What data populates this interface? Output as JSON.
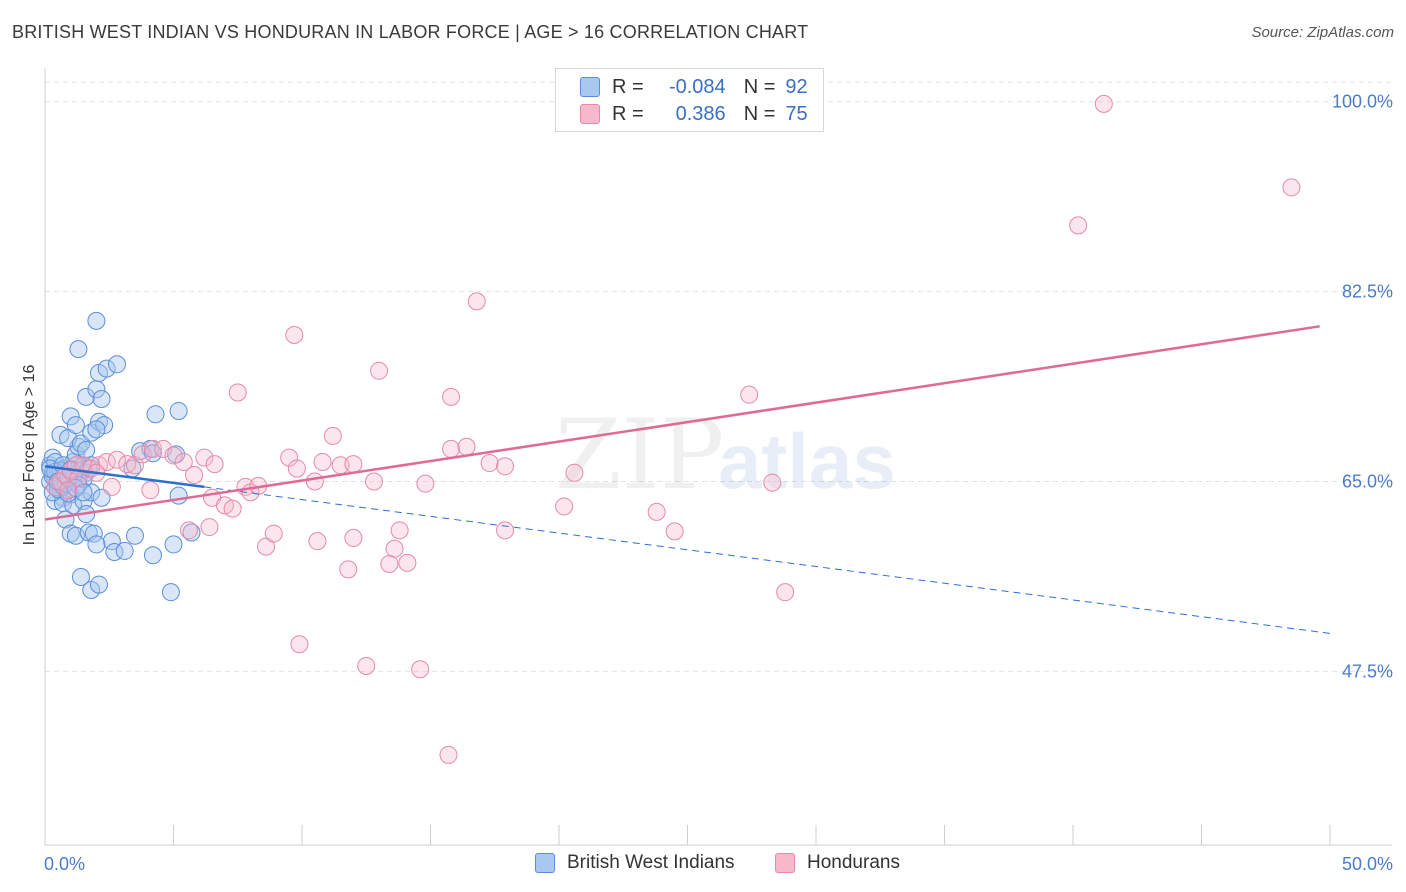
{
  "title": "BRITISH WEST INDIAN VS HONDURAN IN LABOR FORCE | AGE > 16 CORRELATION CHART",
  "source": "Source: ZipAtlas.com",
  "watermark": {
    "zip": "ZIP",
    "atlas": "atlas"
  },
  "legend": {
    "rows": [
      {
        "r_label": "R =",
        "r_value": "-0.084",
        "n_label": "N =",
        "n_value": "92"
      },
      {
        "r_label": "R =",
        "r_value": "0.386",
        "n_label": "N =",
        "n_value": "75"
      }
    ]
  },
  "bottom_legend": [
    "British West Indians",
    "Hondurans"
  ],
  "colors": {
    "blue_fill": "#a9c8f0",
    "blue_stroke": "#5b8fd8",
    "blue_line": "#2d6fd0",
    "pink_fill": "#f7b8cc",
    "pink_stroke": "#e48aa8",
    "pink_line": "#e06a96"
  },
  "chart_data": {
    "type": "scatter",
    "title": "BRITISH WEST INDIAN VS HONDURAN IN LABOR FORCE | AGE > 16 CORRELATION CHART",
    "xlabel": "",
    "ylabel": "In Labor Force | Age > 16",
    "xlim": [
      0,
      50
    ],
    "ylim": [
      31.5,
      102
    ],
    "x_tick_labels": [
      "0.0%",
      "50.0%"
    ],
    "y_ticks": [
      47.5,
      65.0,
      82.5,
      100.0
    ],
    "y_tick_labels": [
      "47.5%",
      "65.0%",
      "82.5%",
      "100.0%"
    ],
    "grid": true,
    "series": [
      {
        "name": "British West Indians",
        "R": -0.084,
        "N": 92,
        "trend": {
          "x0": 0,
          "y0": 66.4,
          "x1": 6.2,
          "y1": 64.5,
          "x_dashed_end": 50,
          "y_dashed_end": 51.0
        },
        "points": [
          [
            0.2,
            66.5
          ],
          [
            0.3,
            65.8
          ],
          [
            0.4,
            65.2
          ],
          [
            0.5,
            64.8
          ],
          [
            0.6,
            64.2
          ],
          [
            0.7,
            63.5
          ],
          [
            0.3,
            67.2
          ],
          [
            0.5,
            66.0
          ],
          [
            0.8,
            65.5
          ],
          [
            0.9,
            64.9
          ],
          [
            1.0,
            63.8
          ],
          [
            1.1,
            66.8
          ],
          [
            1.2,
            67.5
          ],
          [
            1.3,
            68.2
          ],
          [
            0.6,
            69.3
          ],
          [
            0.9,
            69.0
          ],
          [
            1.4,
            68.5
          ],
          [
            1.6,
            67.9
          ],
          [
            1.8,
            69.5
          ],
          [
            2.1,
            70.5
          ],
          [
            2.3,
            70.2
          ],
          [
            1.6,
            72.8
          ],
          [
            2.0,
            73.5
          ],
          [
            2.2,
            72.6
          ],
          [
            2.1,
            75.0
          ],
          [
            2.4,
            75.4
          ],
          [
            2.8,
            75.8
          ],
          [
            1.3,
            77.2
          ],
          [
            2.0,
            79.8
          ],
          [
            1.0,
            71.0
          ],
          [
            1.2,
            70.2
          ],
          [
            2.0,
            69.8
          ],
          [
            0.4,
            63.2
          ],
          [
            0.7,
            63.0
          ],
          [
            1.1,
            62.8
          ],
          [
            1.5,
            63.2
          ],
          [
            1.8,
            64.0
          ],
          [
            2.2,
            63.5
          ],
          [
            1.6,
            62.0
          ],
          [
            0.8,
            61.5
          ],
          [
            1.0,
            60.2
          ],
          [
            1.2,
            60.0
          ],
          [
            1.7,
            60.3
          ],
          [
            1.9,
            60.2
          ],
          [
            2.6,
            59.5
          ],
          [
            2.0,
            59.2
          ],
          [
            2.7,
            58.5
          ],
          [
            3.1,
            58.6
          ],
          [
            3.5,
            60.0
          ],
          [
            3.4,
            66.2
          ],
          [
            3.7,
            67.8
          ],
          [
            4.1,
            68.0
          ],
          [
            4.2,
            67.6
          ],
          [
            4.3,
            71.2
          ],
          [
            5.2,
            71.5
          ],
          [
            5.1,
            67.5
          ],
          [
            5.2,
            63.7
          ],
          [
            5.7,
            60.3
          ],
          [
            5.0,
            59.2
          ],
          [
            4.2,
            58.2
          ],
          [
            1.4,
            56.2
          ],
          [
            1.8,
            55.0
          ],
          [
            2.1,
            55.5
          ],
          [
            4.9,
            54.8
          ],
          [
            0.2,
            65.0
          ],
          [
            0.3,
            64.0
          ],
          [
            0.4,
            66.8
          ],
          [
            0.6,
            65.5
          ],
          [
            0.8,
            66.2
          ],
          [
            1.0,
            65.0
          ],
          [
            1.2,
            66.5
          ],
          [
            1.4,
            66.0
          ],
          [
            1.6,
            65.8
          ],
          [
            1.8,
            66.5
          ],
          [
            0.5,
            64.3
          ],
          [
            0.7,
            64.6
          ],
          [
            0.9,
            63.9
          ],
          [
            1.5,
            65.2
          ],
          [
            1.7,
            66.2
          ],
          [
            0.3,
            65.5
          ],
          [
            0.6,
            66.0
          ],
          [
            0.8,
            64.8
          ],
          [
            1.1,
            65.6
          ],
          [
            1.3,
            64.7
          ],
          [
            0.4,
            65.9
          ],
          [
            0.2,
            66.2
          ],
          [
            0.5,
            65.0
          ],
          [
            0.7,
            66.5
          ],
          [
            0.9,
            65.3
          ],
          [
            1.0,
            66.1
          ],
          [
            1.2,
            64.4
          ],
          [
            1.5,
            64.0
          ]
        ]
      },
      {
        "name": "Hondurans",
        "R": 0.386,
        "N": 75,
        "trend": {
          "x0": 0,
          "y0": 61.5,
          "x1": 49.6,
          "y1": 79.3
        },
        "points": [
          [
            0.4,
            64.5
          ],
          [
            0.6,
            65.0
          ],
          [
            0.8,
            65.6
          ],
          [
            1.0,
            66.0
          ],
          [
            1.2,
            66.5
          ],
          [
            1.5,
            66.5
          ],
          [
            1.8,
            66.2
          ],
          [
            2.1,
            66.5
          ],
          [
            2.4,
            66.8
          ],
          [
            2.8,
            67.0
          ],
          [
            3.2,
            66.6
          ],
          [
            3.5,
            66.5
          ],
          [
            3.8,
            67.5
          ],
          [
            4.2,
            68.0
          ],
          [
            4.6,
            68.0
          ],
          [
            5.0,
            67.4
          ],
          [
            5.4,
            66.8
          ],
          [
            5.8,
            65.6
          ],
          [
            6.2,
            67.2
          ],
          [
            6.6,
            66.6
          ],
          [
            2.6,
            64.5
          ],
          [
            4.1,
            64.2
          ],
          [
            5.6,
            60.5
          ],
          [
            6.4,
            60.8
          ],
          [
            6.5,
            63.5
          ],
          [
            7.0,
            62.8
          ],
          [
            7.3,
            62.5
          ],
          [
            7.8,
            64.5
          ],
          [
            8.0,
            64.0
          ],
          [
            8.3,
            64.6
          ],
          [
            7.5,
            73.2
          ],
          [
            9.5,
            67.2
          ],
          [
            9.8,
            66.2
          ],
          [
            10.5,
            65.0
          ],
          [
            10.8,
            66.8
          ],
          [
            11.2,
            69.2
          ],
          [
            11.5,
            66.5
          ],
          [
            12.0,
            66.6
          ],
          [
            12.8,
            65.0
          ],
          [
            13.0,
            75.2
          ],
          [
            13.8,
            60.5
          ],
          [
            14.8,
            64.8
          ],
          [
            14.1,
            57.5
          ],
          [
            13.6,
            58.8
          ],
          [
            13.4,
            57.4
          ],
          [
            12.0,
            59.8
          ],
          [
            11.8,
            56.9
          ],
          [
            10.6,
            59.5
          ],
          [
            8.6,
            59.0
          ],
          [
            8.9,
            60.2
          ],
          [
            9.7,
            78.5
          ],
          [
            9.9,
            50.0
          ],
          [
            12.5,
            48.0
          ],
          [
            14.6,
            47.7
          ],
          [
            15.8,
            72.8
          ],
          [
            15.8,
            68.0
          ],
          [
            16.4,
            68.2
          ],
          [
            16.8,
            81.6
          ],
          [
            17.3,
            66.7
          ],
          [
            17.9,
            66.4
          ],
          [
            17.9,
            60.5
          ],
          [
            20.2,
            62.7
          ],
          [
            20.6,
            65.8
          ],
          [
            23.8,
            62.2
          ],
          [
            24.5,
            60.4
          ],
          [
            27.4,
            73.0
          ],
          [
            28.3,
            64.9
          ],
          [
            28.8,
            54.8
          ],
          [
            15.7,
            39.8
          ],
          [
            40.2,
            88.6
          ],
          [
            41.2,
            99.8
          ],
          [
            48.5,
            92.1
          ],
          [
            1.3,
            65.3
          ],
          [
            2.0,
            65.8
          ],
          [
            0.9,
            64.2
          ]
        ]
      }
    ]
  }
}
